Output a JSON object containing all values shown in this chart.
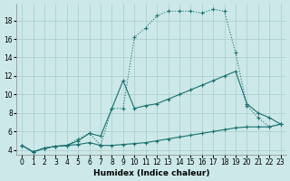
{
  "xlabel": "Humidex (Indice chaleur)",
  "bg_color": "#cce8e8",
  "grid_color": "#aacccc",
  "line_color": "#1a7070",
  "xlim": [
    -0.5,
    23.5
  ],
  "ylim": [
    3.5,
    19.8
  ],
  "xticks": [
    0,
    1,
    2,
    3,
    4,
    5,
    6,
    7,
    8,
    9,
    10,
    11,
    12,
    13,
    14,
    15,
    16,
    17,
    18,
    19,
    20,
    21,
    22,
    23
  ],
  "yticks": [
    4,
    6,
    8,
    10,
    12,
    14,
    16,
    18
  ],
  "line_flat_x": [
    0,
    1,
    2,
    3,
    4,
    5,
    6,
    7,
    8,
    9,
    10,
    11,
    12,
    13,
    14,
    15,
    16,
    17,
    18,
    19,
    20,
    21,
    22,
    23
  ],
  "line_flat_y": [
    4.5,
    3.8,
    4.2,
    4.4,
    4.5,
    4.6,
    4.8,
    4.5,
    4.5,
    4.6,
    4.7,
    4.8,
    5.0,
    5.2,
    5.4,
    5.6,
    5.8,
    6.0,
    6.2,
    6.4,
    6.5,
    6.5,
    6.5,
    6.8
  ],
  "line_mid_x": [
    0,
    1,
    2,
    3,
    4,
    5,
    6,
    7,
    8,
    9,
    10,
    11,
    12,
    13,
    14,
    15,
    16,
    17,
    18,
    19,
    20,
    21,
    22,
    23
  ],
  "line_mid_y": [
    4.5,
    3.8,
    4.2,
    4.4,
    4.5,
    5.0,
    5.8,
    5.5,
    8.5,
    11.5,
    8.5,
    8.8,
    9.0,
    9.5,
    10.0,
    10.5,
    11.0,
    11.5,
    12.0,
    12.5,
    9.0,
    8.0,
    7.5,
    6.8
  ],
  "line_top_x": [
    0,
    1,
    2,
    3,
    4,
    5,
    6,
    7,
    8,
    9,
    10,
    11,
    12,
    13,
    14,
    15,
    16,
    17,
    18,
    19,
    20,
    21,
    22,
    23
  ],
  "line_top_y": [
    4.5,
    3.8,
    4.2,
    4.4,
    4.5,
    5.2,
    5.8,
    4.5,
    8.5,
    8.5,
    16.2,
    17.2,
    18.5,
    19.0,
    19.0,
    19.0,
    18.8,
    19.2,
    19.0,
    14.5,
    8.8,
    7.5,
    6.5,
    6.8
  ]
}
